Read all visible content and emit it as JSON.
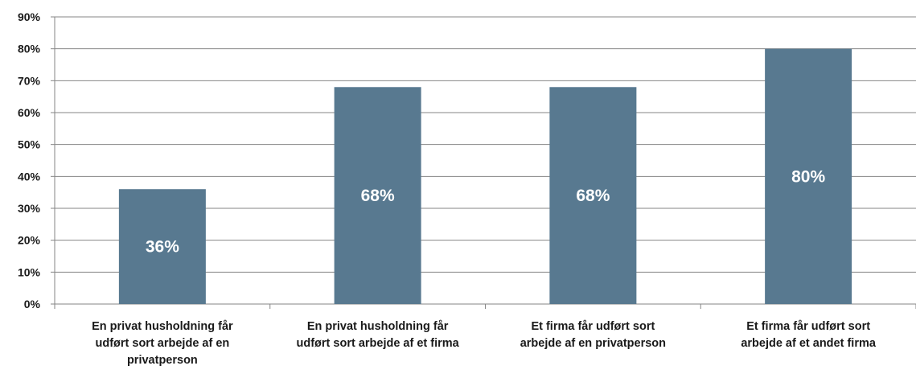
{
  "chart_data": {
    "type": "bar",
    "title": "",
    "xlabel": "",
    "ylabel": "",
    "ylim": [
      0,
      90
    ],
    "yticks": [
      "0%",
      "10%",
      "20%",
      "30%",
      "40%",
      "50%",
      "60%",
      "70%",
      "80%",
      "90%"
    ],
    "grid": true,
    "bar_color": "#587990",
    "categories": [
      [
        "En privat husholdning får",
        "udført sort arbejde af en",
        "privatperson"
      ],
      [
        "En privat husholdning får",
        "udført sort arbejde af et firma"
      ],
      [
        "Et firma får udført sort",
        "arbejde af en privatperson"
      ],
      [
        "Et firma får udført sort",
        "arbejde af et andet firma"
      ]
    ],
    "values": [
      36,
      68,
      68,
      80
    ],
    "data_labels": [
      "36%",
      "68%",
      "68%",
      "80%"
    ]
  }
}
